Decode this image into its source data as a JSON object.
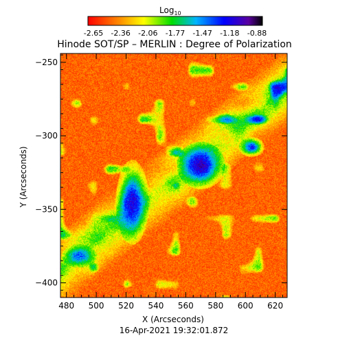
{
  "chart_data": {
    "type": "heatmap",
    "title": "Hinode SOT/SP – MERLIN : Degree of Polarization",
    "xlabel": "X (Arcseconds)",
    "ylabel": "Y (Arcseconds)",
    "date_label": "16-Apr-2021 19:32:01.872",
    "colorbar": {
      "label_base": "Log",
      "label_sub": "10",
      "ticks": [
        "-2.65",
        "-2.36",
        "-2.06",
        "-1.77",
        "-1.47",
        "-1.18",
        "-0.88"
      ],
      "range": [
        -2.65,
        -0.88
      ],
      "colormap": "rainbow (red low → violet/black high)"
    },
    "xlim": [
      476,
      628
    ],
    "ylim": [
      -410,
      -244
    ],
    "x_ticks": [
      480,
      500,
      520,
      540,
      560,
      580,
      600,
      620
    ],
    "y_ticks": [
      -250,
      -300,
      -350,
      -400
    ],
    "features": [
      {
        "name": "strong polarization cluster",
        "x_range": [
          518,
          530
        ],
        "y_range": [
          -365,
          -325
        ],
        "log_value": -1.2
      },
      {
        "name": "strong polarization cluster",
        "x_range": [
          560,
          580
        ],
        "y_range": [
          -330,
          -310
        ],
        "log_value": -1.1
      },
      {
        "name": "strong polarization patch",
        "x_range": [
          600,
          608
        ],
        "y_range": [
          -310,
          -305
        ],
        "log_value": -1.3
      },
      {
        "name": "strong polarization patch",
        "x_range": [
          482,
          495
        ],
        "y_range": [
          -385,
          -378
        ],
        "log_value": -1.4
      }
    ]
  }
}
